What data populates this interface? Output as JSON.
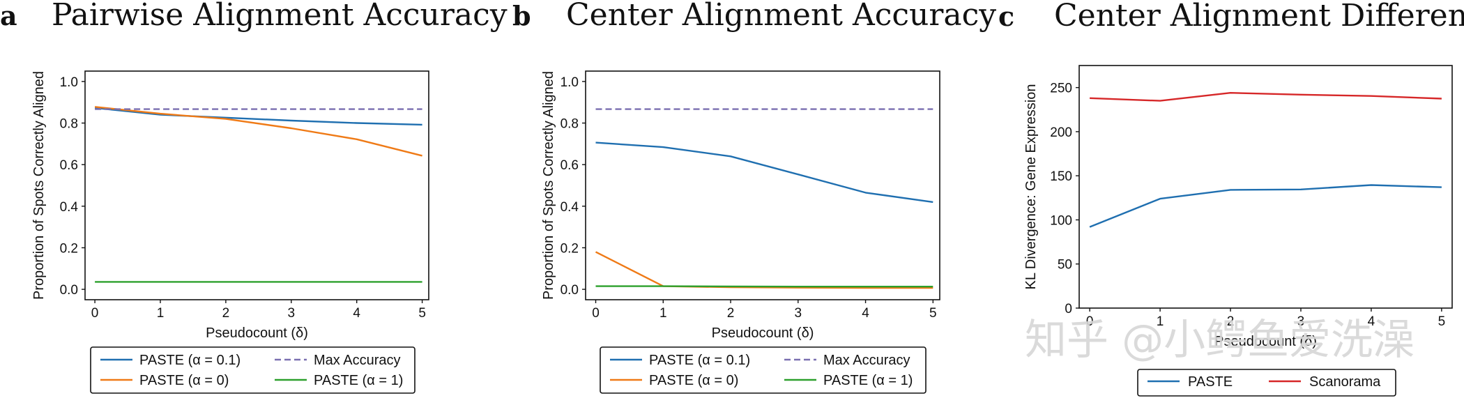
{
  "watermark": "知乎 @小鳄鱼爱洗澡",
  "chart_data": [
    {
      "panel": "a",
      "type": "line",
      "title": "Pairwise Alignment Accuracy",
      "xlabel": "Pseudocount (δ)",
      "ylabel": "Proportion of Spots Correctly Aligned",
      "xlim": [
        -0.15,
        5.1
      ],
      "ylim": [
        -0.05,
        1.05
      ],
      "xticks": [
        0,
        1,
        2,
        3,
        4,
        5
      ],
      "yticks": [
        0.0,
        0.2,
        0.4,
        0.6,
        0.8,
        1.0
      ],
      "ytick_labels": [
        "0.0",
        "0.2",
        "0.4",
        "0.6",
        "0.8",
        "1.0"
      ],
      "x": [
        0,
        1,
        2,
        3,
        4,
        5
      ],
      "series": [
        {
          "name": "PASTE (α = 0.1)",
          "color": "#1f6fb0",
          "dash": "solid",
          "values": [
            0.873,
            0.84,
            0.826,
            0.812,
            0.8,
            0.792
          ]
        },
        {
          "name": "PASTE (α = 0)",
          "color": "#ef7a16",
          "dash": "solid",
          "values": [
            0.878,
            0.845,
            0.82,
            0.775,
            0.722,
            0.643
          ]
        },
        {
          "name": "Max Accuracy",
          "color": "#7a6fb0",
          "dash": "dashed",
          "values": [
            0.867,
            0.867,
            0.867,
            0.867,
            0.867,
            0.867
          ]
        },
        {
          "name": "PASTE (α = 1)",
          "color": "#2ca02c",
          "dash": "solid",
          "values": [
            0.036,
            0.036,
            0.036,
            0.036,
            0.036,
            0.036
          ]
        }
      ],
      "legend": {
        "placement": "bottom",
        "columns": 2,
        "order": [
          "PASTE (α = 0.1)",
          "Max Accuracy",
          "PASTE (α = 0)",
          "PASTE (α = 1)"
        ]
      }
    },
    {
      "panel": "b",
      "type": "line",
      "title": "Center Alignment Accuracy",
      "xlabel": "Pseudocount (δ)",
      "ylabel": "Proportion of Spots Correctly Aligned",
      "xlim": [
        -0.15,
        5.1
      ],
      "ylim": [
        -0.05,
        1.05
      ],
      "xticks": [
        0,
        1,
        2,
        3,
        4,
        5
      ],
      "yticks": [
        0.0,
        0.2,
        0.4,
        0.6,
        0.8,
        1.0
      ],
      "ytick_labels": [
        "0.0",
        "0.2",
        "0.4",
        "0.6",
        "0.8",
        "1.0"
      ],
      "x": [
        0,
        1,
        2,
        3,
        4,
        5
      ],
      "series": [
        {
          "name": "PASTE (α = 0.1)",
          "color": "#1f6fb0",
          "dash": "solid",
          "values": [
            0.706,
            0.684,
            0.64,
            0.553,
            0.465,
            0.42
          ]
        },
        {
          "name": "PASTE (α = 0)",
          "color": "#ef7a16",
          "dash": "solid",
          "values": [
            0.18,
            0.015,
            0.01,
            0.008,
            0.007,
            0.007
          ]
        },
        {
          "name": "Max Accuracy",
          "color": "#7a6fb0",
          "dash": "dashed",
          "values": [
            0.867,
            0.867,
            0.867,
            0.867,
            0.867,
            0.867
          ]
        },
        {
          "name": "PASTE (α = 1)",
          "color": "#2ca02c",
          "dash": "solid",
          "values": [
            0.015,
            0.015,
            0.014,
            0.013,
            0.013,
            0.013
          ]
        }
      ],
      "legend": {
        "placement": "bottom",
        "columns": 2,
        "order": [
          "PASTE (α = 0.1)",
          "Max Accuracy",
          "PASTE (α = 0)",
          "PASTE (α = 1)"
        ]
      }
    },
    {
      "panel": "c",
      "type": "line",
      "title": "Center Alignment Difference",
      "xlabel": "Pseudocount (δ)",
      "ylabel": "KL Divergence: Gene Expression",
      "xlim": [
        -0.15,
        5.15
      ],
      "ylim": [
        0,
        275
      ],
      "xticks": [
        0,
        1,
        2,
        3,
        4,
        5
      ],
      "yticks": [
        0,
        50,
        100,
        150,
        200,
        250
      ],
      "ytick_labels": [
        "0",
        "50",
        "100",
        "150",
        "200",
        "250"
      ],
      "x": [
        0,
        1,
        2,
        3,
        4,
        5
      ],
      "series": [
        {
          "name": "PASTE",
          "color": "#1f6fb0",
          "dash": "solid",
          "values": [
            92,
            124,
            134,
            134.5,
            139.5,
            137
          ]
        },
        {
          "name": "Scanorama",
          "color": "#d62728",
          "dash": "solid",
          "values": [
            238,
            235,
            244,
            242,
            240.5,
            237.5
          ]
        }
      ],
      "legend": {
        "placement": "bottom",
        "columns": 2,
        "order": [
          "PASTE",
          "Scanorama"
        ]
      }
    }
  ]
}
